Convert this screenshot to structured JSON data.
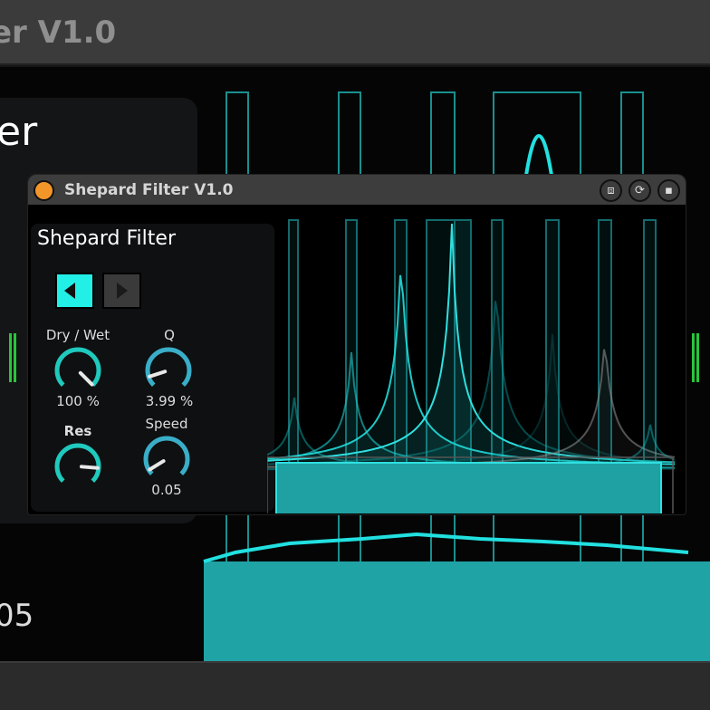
{
  "background": {
    "title_fragment": "er V1.0",
    "panel_fragment": "er",
    "value_fragment": "05"
  },
  "device": {
    "title": "Shepard Filter V1.0",
    "header_icons": [
      "freeze-icon",
      "hot-swap-icon",
      "save-preset-icon"
    ],
    "panel_title": "Shepard Filter",
    "direction": {
      "left_active": true,
      "right_active": false
    },
    "knobs": {
      "dry_wet": {
        "label": "Dry / Wet",
        "value": "100 %",
        "fraction": 1.0
      },
      "q": {
        "label": "Q",
        "value": "3.99 %",
        "fraction": 0.1
      },
      "res": {
        "label": "Res",
        "value": "",
        "fraction": 0.85
      },
      "speed": {
        "label": "Speed",
        "value": "0.05",
        "fraction": 0.05
      }
    }
  },
  "colors": {
    "accent": "#22f0e6",
    "knob_arc": "#1fc9bd",
    "knob_arc_alt": "#3aaec8",
    "title_dot": "#f3962a",
    "meter": "#29c63a"
  }
}
